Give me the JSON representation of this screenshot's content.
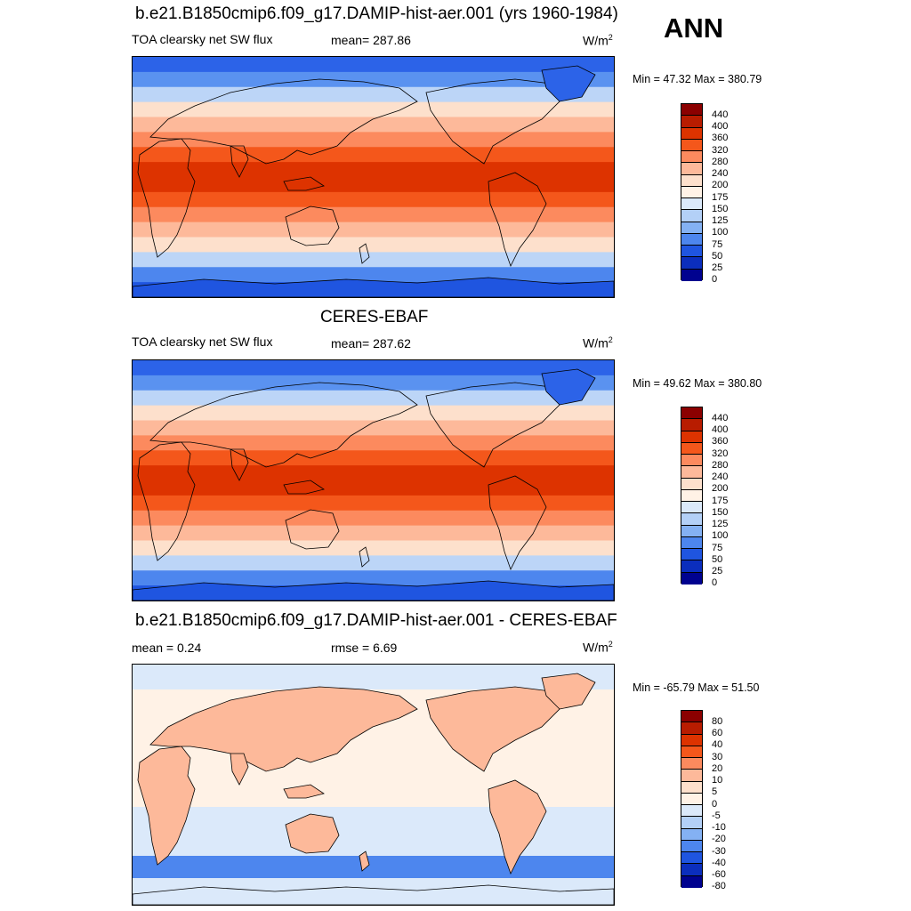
{
  "season": "ANN",
  "panels": [
    {
      "title": "b.e21.B1850cmip6.f09_g17.DAMIP-hist-aer.001 (yrs 1960-1984)",
      "left_label": "TOA clearsky net SW flux",
      "mid_label": "mean= 287.86",
      "units": "W/m",
      "units_sup": "2",
      "minmax": "Min =  47.32 Max = 380.79"
    },
    {
      "title": "CERES-EBAF",
      "left_label": "TOA clearsky net SW flux",
      "mid_label": "mean= 287.62",
      "units": "W/m",
      "units_sup": "2",
      "minmax": "Min =  49.62 Max = 380.80"
    },
    {
      "title": "b.e21.B1850cmip6.f09_g17.DAMIP-hist-aer.001 - CERES-EBAF",
      "left_label": "mean =   0.24",
      "mid_label": "rmse =   6.69",
      "units": "W/m",
      "units_sup": "2",
      "minmax": "Min = -65.79 Max =  51.50"
    }
  ],
  "colorbars": {
    "abs": {
      "labels": [
        "440",
        "400",
        "360",
        "320",
        "280",
        "240",
        "200",
        "175",
        "150",
        "125",
        "100",
        "75",
        "50",
        "25",
        "0"
      ],
      "colors": [
        "#8b0000",
        "#b81c00",
        "#dd3300",
        "#f4571b",
        "#fc8a5e",
        "#fdb99a",
        "#fde0cc",
        "#fff2e6",
        "#dbe9fa",
        "#b3d0f7",
        "#84b1f3",
        "#4d86ee",
        "#1f55e0",
        "#0b2ebd",
        "#00028f"
      ]
    },
    "diff": {
      "labels": [
        "80",
        "60",
        "40",
        "30",
        "20",
        "10",
        "5",
        "0",
        "-5",
        "-10",
        "-20",
        "-30",
        "-40",
        "-60",
        "-80"
      ],
      "colors": [
        "#8b0000",
        "#b81c00",
        "#dd3300",
        "#f4571b",
        "#fc8a5e",
        "#fdb99a",
        "#fde0cc",
        "#fff2e6",
        "#dbe9fa",
        "#b3d0f7",
        "#84b1f3",
        "#4d86ee",
        "#1f55e0",
        "#0b2ebd",
        "#00028f"
      ]
    }
  },
  "map_colors": {
    "lat_bands_model": [
      "#2c63e8",
      "#5a92f0",
      "#bcd5f7",
      "#fde0cc",
      "#fdb99a",
      "#fc8a5e",
      "#f4571b",
      "#dd3300",
      "#dd3300",
      "#f4571b",
      "#fc8a5e",
      "#fdb99a",
      "#fde0cc",
      "#bcd5f7",
      "#4d86ee",
      "#1f55e0"
    ],
    "land_fill": "#f4571b",
    "land_light": "#fc8a5e",
    "diff_ocean": "#fff2e6",
    "diff_ocean_alt": "#dbe9fa",
    "diff_land": "#fdb99a"
  }
}
